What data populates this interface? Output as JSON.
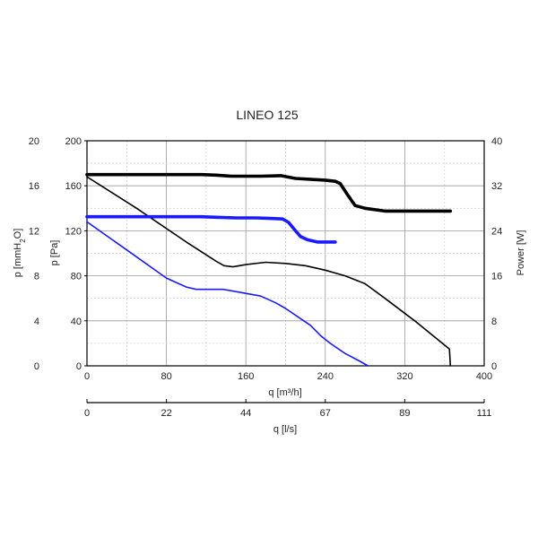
{
  "chart_data": {
    "type": "line",
    "title": "LINEO 125",
    "x_axis_primary": {
      "label": "q [m³/h]",
      "ticks": [
        "0",
        "80",
        "160",
        "240",
        "320",
        "400"
      ],
      "range": [
        0,
        400
      ]
    },
    "x_axis_secondary": {
      "label": "q [l/s]",
      "ticks": [
        "0",
        "22",
        "44",
        "67",
        "89",
        "111"
      ],
      "range": [
        0,
        111
      ]
    },
    "y_axis_left_outer": {
      "label_parts": [
        "p [mmH",
        "2",
        "O]"
      ],
      "ticks": [
        "0",
        "4",
        "8",
        "12",
        "16",
        "20"
      ],
      "range": [
        0,
        20
      ]
    },
    "y_axis_left": {
      "label": "p [Pa]",
      "ticks": [
        "0",
        "40",
        "80",
        "120",
        "160",
        "200"
      ],
      "range": [
        0,
        200
      ]
    },
    "y_axis_right": {
      "label": "Power [W]",
      "ticks": [
        "0",
        "8",
        "16",
        "24",
        "32",
        "40"
      ],
      "range": [
        0,
        40
      ]
    },
    "grid": true,
    "series": [
      {
        "axis": "power",
        "color": "#000000",
        "weight": "thick",
        "points": [
          [
            0,
            34
          ],
          [
            60,
            34
          ],
          [
            115,
            34
          ],
          [
            130,
            33.9
          ],
          [
            145,
            33.7
          ],
          [
            175,
            33.7
          ],
          [
            195,
            33.8
          ],
          [
            210,
            33.3
          ],
          [
            230,
            33.1
          ],
          [
            240,
            33.0
          ],
          [
            250,
            32.8
          ],
          [
            255,
            32.4
          ],
          [
            262,
            30.5
          ],
          [
            270,
            28.5
          ],
          [
            280,
            28.0
          ],
          [
            300,
            27.5
          ],
          [
            366,
            27.5
          ]
        ]
      },
      {
        "axis": "pressure",
        "color": "#000000",
        "weight": "thin",
        "points": [
          [
            0,
            168
          ],
          [
            50,
            140
          ],
          [
            100,
            110
          ],
          [
            130,
            93
          ],
          [
            138,
            89
          ],
          [
            147,
            88
          ],
          [
            160,
            90
          ],
          [
            180,
            92
          ],
          [
            200,
            91
          ],
          [
            220,
            89
          ],
          [
            240,
            85
          ],
          [
            260,
            80
          ],
          [
            280,
            73
          ],
          [
            300,
            60
          ],
          [
            330,
            40
          ],
          [
            365,
            15
          ],
          [
            366,
            0
          ]
        ]
      },
      {
        "axis": "power",
        "color": "#1a1aff",
        "weight": "thick",
        "points": [
          [
            0,
            26.5
          ],
          [
            60,
            26.5
          ],
          [
            115,
            26.5
          ],
          [
            130,
            26.4
          ],
          [
            150,
            26.3
          ],
          [
            170,
            26.3
          ],
          [
            185,
            26.2
          ],
          [
            197,
            26.1
          ],
          [
            203,
            25.5
          ],
          [
            210,
            24.0
          ],
          [
            215,
            23.0
          ],
          [
            222,
            22.4
          ],
          [
            232,
            22.0
          ],
          [
            250,
            22.0
          ]
        ]
      },
      {
        "axis": "pressure",
        "color": "#1a1aff",
        "weight": "thin",
        "points": [
          [
            0,
            128
          ],
          [
            40,
            103
          ],
          [
            80,
            78
          ],
          [
            100,
            70
          ],
          [
            110,
            68
          ],
          [
            125,
            68
          ],
          [
            137,
            68
          ],
          [
            150,
            66
          ],
          [
            175,
            62
          ],
          [
            190,
            56
          ],
          [
            200,
            51
          ],
          [
            215,
            42
          ],
          [
            225,
            36
          ],
          [
            235,
            27
          ],
          [
            245,
            20
          ],
          [
            260,
            11
          ],
          [
            275,
            4
          ],
          [
            283,
            0
          ]
        ]
      }
    ]
  }
}
